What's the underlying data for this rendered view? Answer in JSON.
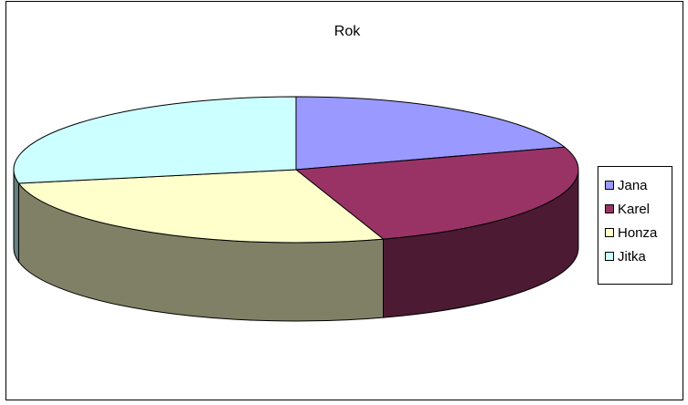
{
  "chart_data": {
    "type": "pie",
    "title": "Rok",
    "style": "3d-pie",
    "series": [
      {
        "name": "Jana",
        "value": 20,
        "color": "#9999ff",
        "side_color": "#4d4d80"
      },
      {
        "name": "Karel",
        "value": 25,
        "color": "#993366",
        "side_color": "#4d1a33"
      },
      {
        "name": "Honza",
        "value": 27,
        "color": "#ffffcc",
        "side_color": "#808066"
      },
      {
        "name": "Jitka",
        "value": 28,
        "color": "#ccffff",
        "side_color": "#668080"
      }
    ],
    "legend_position": "right"
  }
}
